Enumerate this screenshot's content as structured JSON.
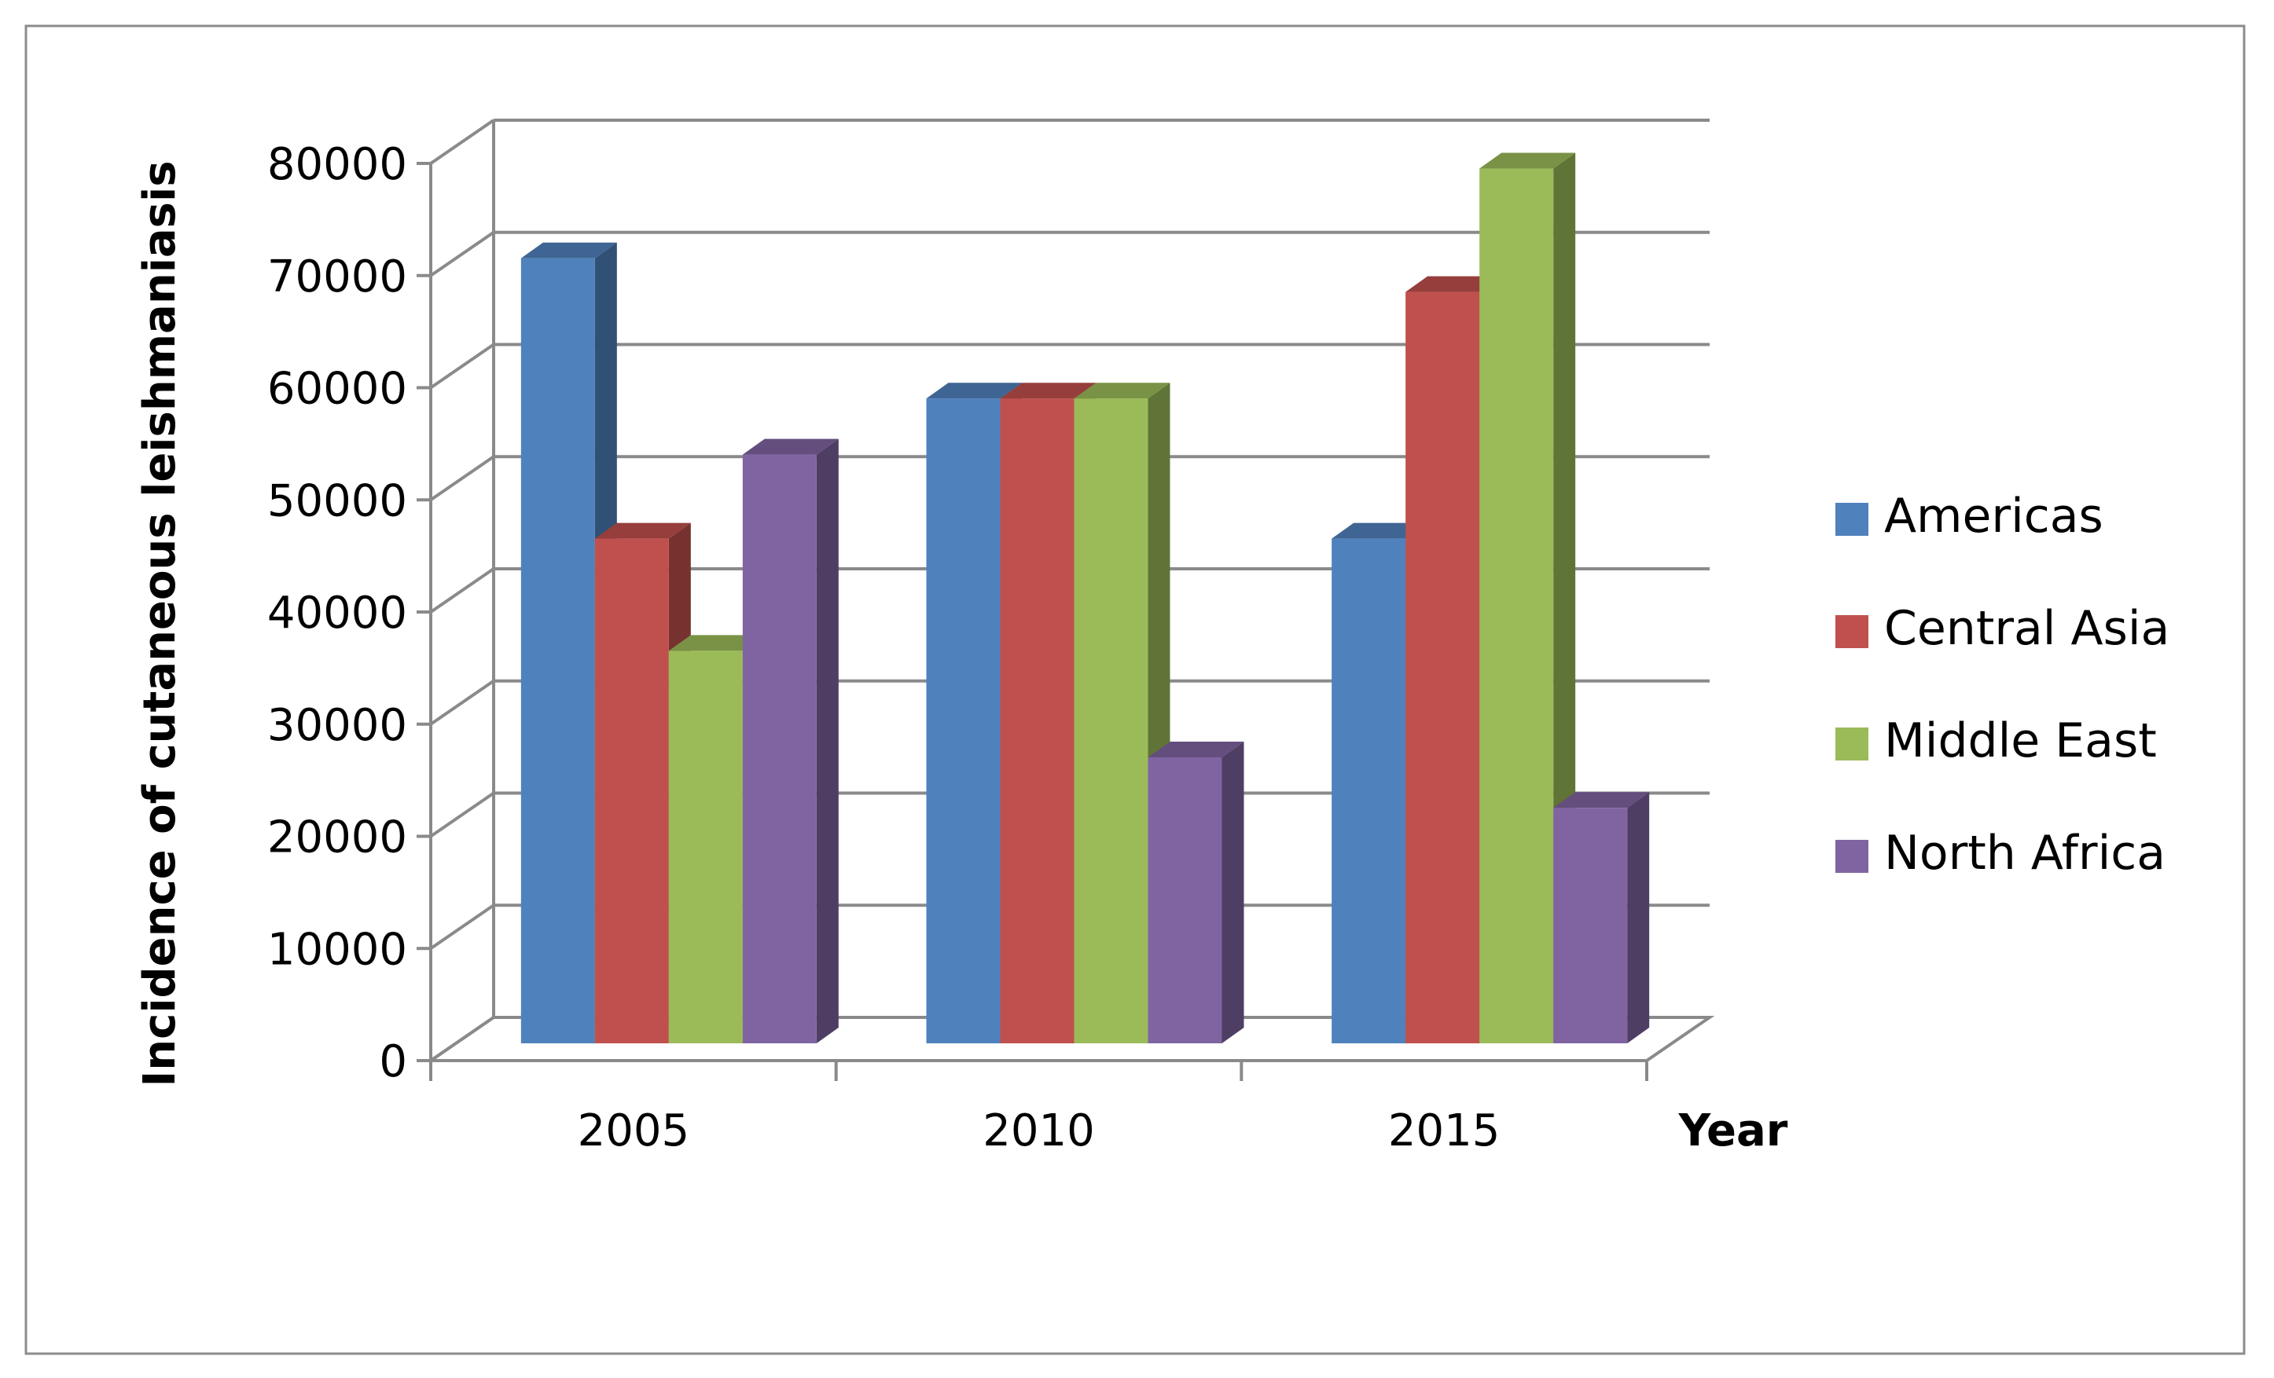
{
  "chart_data": {
    "type": "bar",
    "style": "3d-clustered-column",
    "categories": [
      "2005",
      "2010",
      "2015"
    ],
    "series": [
      {
        "name": "Americas",
        "color": "#4F81BD",
        "values": [
          70000,
          57500,
          45000
        ]
      },
      {
        "name": "Central Asia",
        "color": "#C0504D",
        "values": [
          45000,
          57500,
          67000
        ]
      },
      {
        "name": "Middle East",
        "color": "#9BBB59",
        "values": [
          35000,
          57500,
          78000
        ]
      },
      {
        "name": "North Africa",
        "color": "#8064A2",
        "values": [
          52500,
          25500,
          21000
        ]
      }
    ],
    "xlabel": "Year",
    "ylabel": "Incidence of cutaneous leishmaniasis",
    "ylim": [
      0,
      80000
    ],
    "yticks": [
      "0",
      "10000",
      "20000",
      "30000",
      "40000",
      "50000",
      "60000",
      "70000",
      "80000"
    ],
    "grid": true,
    "legend": "right"
  }
}
